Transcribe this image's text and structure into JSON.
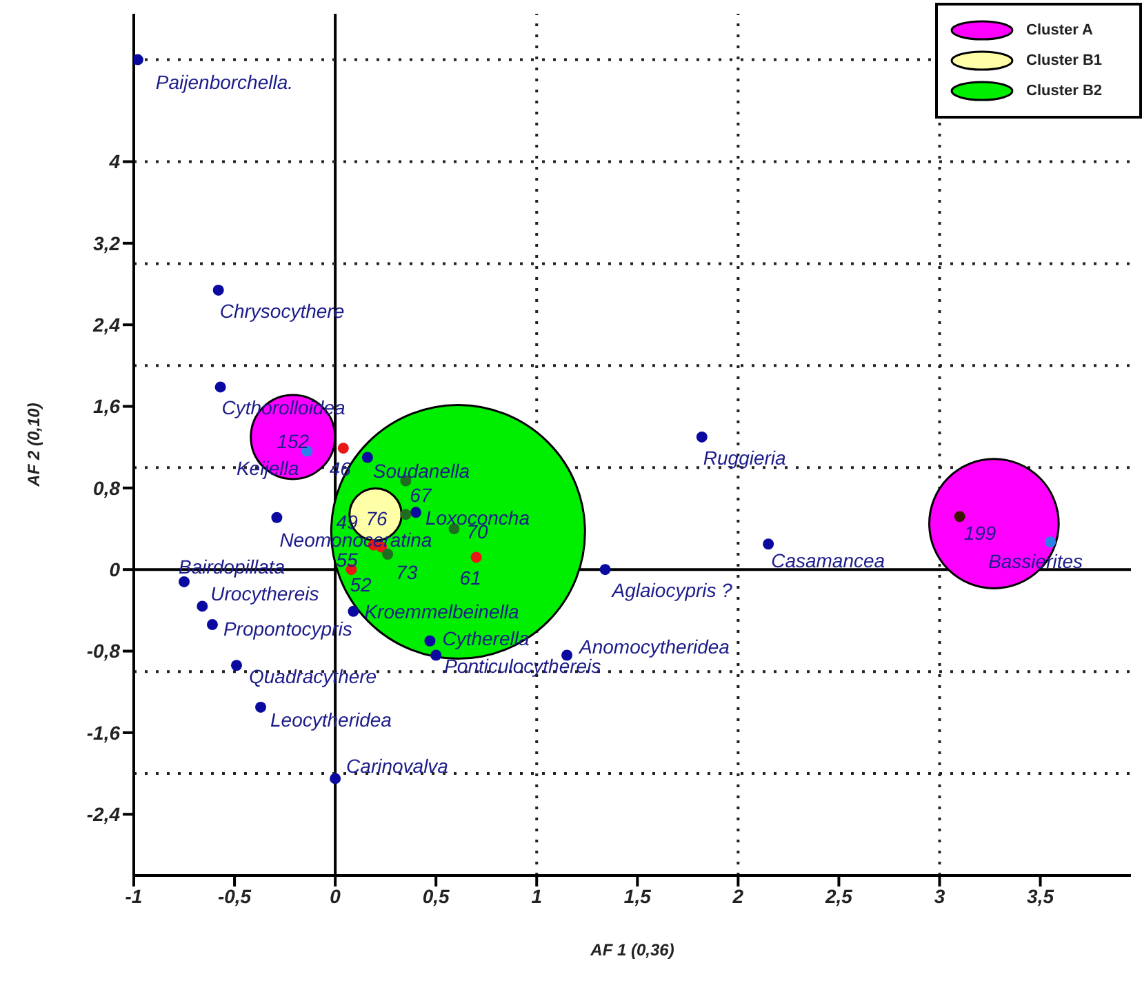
{
  "chart_data": {
    "type": "scatter",
    "xlabel": "AF 1 (0,36)",
    "ylabel": "AF 2 (0,10)",
    "xlim": [
      -1,
      3.95
    ],
    "ylim": [
      -3,
      5.45
    ],
    "xticks": [
      -1,
      {
        "value": -0.5,
        "label": "-0,5"
      },
      0,
      {
        "value": 0.5,
        "label": "0,5"
      },
      1,
      {
        "value": 1.5,
        "label": "1,5"
      },
      2,
      {
        "value": 2.5,
        "label": "2,5"
      },
      3,
      {
        "value": 3.5,
        "label": "3,5"
      }
    ],
    "yticks": [
      {
        "value": -2.4,
        "label": "-2,4"
      },
      {
        "value": -1.6,
        "label": "-1,6"
      },
      {
        "value": -0.8,
        "label": "-0,8"
      },
      0,
      {
        "value": 0.8,
        "label": "0,8"
      },
      {
        "value": 1.6,
        "label": "1,6"
      },
      {
        "value": 2.4,
        "label": "2,4"
      },
      {
        "value": 3.2,
        "label": "3,2"
      },
      4
    ],
    "marker": "circle",
    "legend": "top right",
    "series": [
      {
        "type": "bubble",
        "name": "Cluster A",
        "color": "#ff00ff",
        "x": [
          -0.21,
          3.27
        ],
        "values": [
          1.3,
          0.45
        ],
        "sizes": [
          0.11,
          0.26
        ]
      },
      {
        "type": "bubble",
        "name": "Cluster B1",
        "color": "#ffffa8",
        "x": [
          0.2
        ],
        "values": [
          0.54
        ],
        "sizes": [
          0.042
        ]
      },
      {
        "type": "bubble",
        "name": "Cluster B2",
        "color": "#00ee00",
        "x": [
          0.61
        ],
        "values": [
          0.37
        ],
        "sizes": [
          1
        ]
      },
      {
        "color": "#0a0aa0",
        "x": [
          -0.98,
          -0.58,
          -0.57,
          0.16,
          0.4,
          -0.29,
          -0.75,
          -0.66,
          -0.61,
          0.09,
          -0.49,
          -0.37,
          0,
          0.47,
          0.5,
          1.15,
          1.34,
          1.82,
          2.15
        ],
        "values": [
          5.0,
          2.74,
          1.79,
          1.1,
          0.56,
          0.51,
          -0.12,
          -0.36,
          -0.54,
          -0.41,
          -0.94,
          -1.35,
          -2.05,
          -0.7,
          -0.84,
          -0.84,
          0,
          1.3,
          0.25
        ]
      },
      {
        "color": "#2f7fe8",
        "x": [
          -0.14,
          3.55
        ],
        "values": [
          1.16,
          0.27
        ]
      },
      {
        "color": "#e81818",
        "x": [
          0.04,
          0.19,
          0.23,
          0.08,
          0.7
        ],
        "values": [
          1.19,
          0.24,
          0.22,
          0,
          0.12
        ]
      },
      {
        "color": "#1f6e1f",
        "x": [
          0.35,
          0.35,
          0.59,
          0.26
        ],
        "values": [
          0.87,
          0.54,
          0.4,
          0.15
        ]
      },
      {
        "color": "#3b1500",
        "x": [
          3.1
        ],
        "values": [
          0.52
        ]
      }
    ],
    "ref_lines": [
      {
        "axis": "x",
        "value": 0,
        "line_style": "solid",
        "color": "#000000"
      },
      {
        "axis": "y",
        "value": 0,
        "line_style": "solid",
        "color": "#000000"
      },
      {
        "axis": "x",
        "value": 1,
        "line_style": "dotted",
        "color": "#222222"
      },
      {
        "axis": "x",
        "value": 2,
        "line_style": "dotted",
        "color": "#222222"
      },
      {
        "axis": "x",
        "value": 3,
        "line_style": "dotted",
        "color": "#222222"
      },
      {
        "axis": "y",
        "value": -2,
        "line_style": "dotted",
        "color": "#222222"
      },
      {
        "axis": "y",
        "value": -1,
        "line_style": "dotted",
        "color": "#222222"
      },
      {
        "axis": "y",
        "value": 1,
        "line_style": "dotted",
        "color": "#222222"
      },
      {
        "axis": "y",
        "value": 2,
        "line_style": "dotted",
        "color": "#222222"
      },
      {
        "axis": "y",
        "value": 3,
        "line_style": "dotted",
        "color": "#222222"
      },
      {
        "axis": "y",
        "value": 4,
        "line_style": "dotted",
        "color": "#222222"
      },
      {
        "axis": "y",
        "value": 5,
        "line_style": "dotted",
        "color": "#222222"
      }
    ],
    "annotations": [
      {
        "text": "Paijenborchella.",
        "x": -0.98,
        "y": 5.0
      },
      {
        "text": "Chrysocythere",
        "x": -0.58,
        "y": 2.74
      },
      {
        "text": "Cythorolloidea",
        "x": -0.57,
        "y": 1.79
      },
      {
        "text": "Keijella",
        "x": -0.14,
        "y": 1.16
      },
      {
        "text": "Soudanella",
        "x": 0.16,
        "y": 1.1
      },
      {
        "text": "Loxoconcha",
        "x": 0.4,
        "y": 0.56
      },
      {
        "text": "Neomonoceratina",
        "x": -0.29,
        "y": 0.51
      },
      {
        "text": "Bairdopillata",
        "x": -0.75,
        "y": -0.12
      },
      {
        "text": "Urocythereis",
        "x": -0.66,
        "y": -0.36
      },
      {
        "text": "Propontocypris",
        "x": -0.61,
        "y": -0.54
      },
      {
        "text": "Kroemmelbeinella",
        "x": 0.09,
        "y": -0.41
      },
      {
        "text": "Cytherella",
        "x": 0.47,
        "y": -0.7
      },
      {
        "text": "Ponticulocythereis",
        "x": 0.5,
        "y": -0.84
      },
      {
        "text": "Anomocytheridea",
        "x": 1.15,
        "y": -0.84
      },
      {
        "text": "Quadracythere",
        "x": -0.49,
        "y": -0.94
      },
      {
        "text": "Leocytheridea",
        "x": -0.37,
        "y": -1.35
      },
      {
        "text": "Carinovalva",
        "x": 0,
        "y": -2.05
      },
      {
        "text": "Aglaiocypris ?",
        "x": 1.34,
        "y": 0
      },
      {
        "text": "Ruggieria",
        "x": 1.82,
        "y": 1.3
      },
      {
        "text": "Casamancea",
        "x": 2.15,
        "y": 0.25
      },
      {
        "text": "Bassierites",
        "x": 3.55,
        "y": 0.27
      },
      {
        "text": "152",
        "x": -0.21,
        "y": 1.3
      },
      {
        "text": "46",
        "x": 0.04,
        "y": 1.19
      },
      {
        "text": "67",
        "x": 0.35,
        "y": 0.87
      },
      {
        "text": "76",
        "x": 0.2,
        "y": 0.54
      },
      {
        "text": "70",
        "x": 0.59,
        "y": 0.4
      },
      {
        "text": "49",
        "x": 0.19,
        "y": 0.24
      },
      {
        "text": "55",
        "x": 0.08,
        "y": 0
      },
      {
        "text": "52",
        "x": 0.08,
        "y": 0
      },
      {
        "text": "73",
        "x": 0.26,
        "y": 0.15
      },
      {
        "text": "61",
        "x": 0.7,
        "y": 0.12
      },
      {
        "text": "199",
        "x": 3.1,
        "y": 0.52
      }
    ]
  }
}
